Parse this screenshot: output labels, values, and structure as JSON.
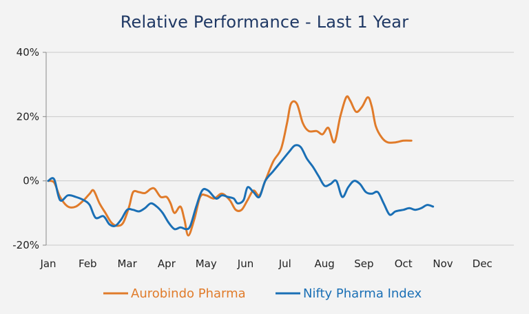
{
  "chart_data": {
    "type": "line",
    "title": "Relative Performance - Last 1 Year",
    "x_categories": [
      "Jan",
      "Feb",
      "Mar",
      "Apr",
      "May",
      "Jun",
      "Jul",
      "Aug",
      "Sep",
      "Oct",
      "Nov",
      "Dec"
    ],
    "y_ticks": [
      "40%",
      "20%",
      "0%",
      "-20%"
    ],
    "ylim": [
      -20,
      40
    ],
    "grid": "horizontal",
    "legend_position": "bottom",
    "series": [
      {
        "name": "Aurobindo Pharma",
        "color": "#e07b2a",
        "points": [
          [
            0.0,
            0
          ],
          [
            0.15,
            -0.5
          ],
          [
            0.3,
            -5
          ],
          [
            0.5,
            -8
          ],
          [
            0.7,
            -8
          ],
          [
            0.9,
            -6
          ],
          [
            1.05,
            -4
          ],
          [
            1.15,
            -3
          ],
          [
            1.3,
            -7
          ],
          [
            1.45,
            -10
          ],
          [
            1.6,
            -13
          ],
          [
            1.75,
            -14
          ],
          [
            1.9,
            -13
          ],
          [
            2.05,
            -8
          ],
          [
            2.15,
            -3.5
          ],
          [
            2.3,
            -3.5
          ],
          [
            2.45,
            -3.8
          ],
          [
            2.6,
            -2.5
          ],
          [
            2.7,
            -2.5
          ],
          [
            2.85,
            -5
          ],
          [
            3.0,
            -5
          ],
          [
            3.1,
            -7
          ],
          [
            3.2,
            -10
          ],
          [
            3.35,
            -8
          ],
          [
            3.45,
            -12
          ],
          [
            3.55,
            -17
          ],
          [
            3.7,
            -12
          ],
          [
            3.85,
            -5
          ],
          [
            4.0,
            -4.5
          ],
          [
            4.2,
            -5.5
          ],
          [
            4.4,
            -4
          ],
          [
            4.6,
            -6
          ],
          [
            4.75,
            -9
          ],
          [
            4.9,
            -9
          ],
          [
            5.05,
            -6
          ],
          [
            5.2,
            -3
          ],
          [
            5.35,
            -4.5
          ],
          [
            5.5,
            0
          ],
          [
            5.7,
            6
          ],
          [
            5.9,
            10
          ],
          [
            6.05,
            18
          ],
          [
            6.15,
            24
          ],
          [
            6.3,
            24
          ],
          [
            6.45,
            18
          ],
          [
            6.6,
            15.5
          ],
          [
            6.8,
            15.5
          ],
          [
            6.95,
            14.5
          ],
          [
            7.1,
            16.5
          ],
          [
            7.25,
            12
          ],
          [
            7.4,
            20
          ],
          [
            7.55,
            26
          ],
          [
            7.65,
            25
          ],
          [
            7.8,
            21.5
          ],
          [
            7.95,
            23
          ],
          [
            8.1,
            26
          ],
          [
            8.2,
            23
          ],
          [
            8.3,
            17
          ],
          [
            8.45,
            13.5
          ],
          [
            8.6,
            12
          ],
          [
            8.8,
            12
          ],
          [
            9.0,
            12.5
          ],
          [
            9.2,
            12.5
          ]
        ]
      },
      {
        "name": "Nifty Pharma Index",
        "color": "#1a6fb5",
        "points": [
          [
            0.0,
            0
          ],
          [
            0.15,
            0.5
          ],
          [
            0.3,
            -6
          ],
          [
            0.5,
            -4.5
          ],
          [
            0.7,
            -5
          ],
          [
            0.9,
            -6
          ],
          [
            1.05,
            -7.5
          ],
          [
            1.2,
            -11.5
          ],
          [
            1.4,
            -11
          ],
          [
            1.55,
            -13.5
          ],
          [
            1.7,
            -14
          ],
          [
            1.85,
            -12
          ],
          [
            2.0,
            -9
          ],
          [
            2.15,
            -9
          ],
          [
            2.3,
            -9.5
          ],
          [
            2.45,
            -8.5
          ],
          [
            2.6,
            -7
          ],
          [
            2.75,
            -8
          ],
          [
            2.9,
            -10
          ],
          [
            3.05,
            -13
          ],
          [
            3.2,
            -15
          ],
          [
            3.35,
            -14.5
          ],
          [
            3.5,
            -15
          ],
          [
            3.6,
            -14
          ],
          [
            3.75,
            -8
          ],
          [
            3.9,
            -3
          ],
          [
            4.05,
            -3
          ],
          [
            4.25,
            -5.5
          ],
          [
            4.4,
            -4.5
          ],
          [
            4.55,
            -5
          ],
          [
            4.7,
            -5.5
          ],
          [
            4.8,
            -7
          ],
          [
            4.95,
            -6
          ],
          [
            5.05,
            -2
          ],
          [
            5.2,
            -3.5
          ],
          [
            5.35,
            -5
          ],
          [
            5.5,
            0
          ],
          [
            5.7,
            3
          ],
          [
            5.9,
            6
          ],
          [
            6.1,
            9
          ],
          [
            6.25,
            11
          ],
          [
            6.4,
            10.5
          ],
          [
            6.55,
            7
          ],
          [
            6.7,
            4.5
          ],
          [
            6.85,
            1.5
          ],
          [
            7.0,
            -1.5
          ],
          [
            7.15,
            -1
          ],
          [
            7.3,
            0
          ],
          [
            7.45,
            -5
          ],
          [
            7.6,
            -2
          ],
          [
            7.75,
            0
          ],
          [
            7.9,
            -1
          ],
          [
            8.05,
            -3.5
          ],
          [
            8.2,
            -4
          ],
          [
            8.35,
            -3.5
          ],
          [
            8.5,
            -7
          ],
          [
            8.65,
            -10.5
          ],
          [
            8.8,
            -9.5
          ],
          [
            9.0,
            -9
          ],
          [
            9.15,
            -8.5
          ],
          [
            9.3,
            -9
          ],
          [
            9.45,
            -8.5
          ],
          [
            9.6,
            -7.5
          ],
          [
            9.75,
            -8
          ]
        ]
      }
    ]
  }
}
